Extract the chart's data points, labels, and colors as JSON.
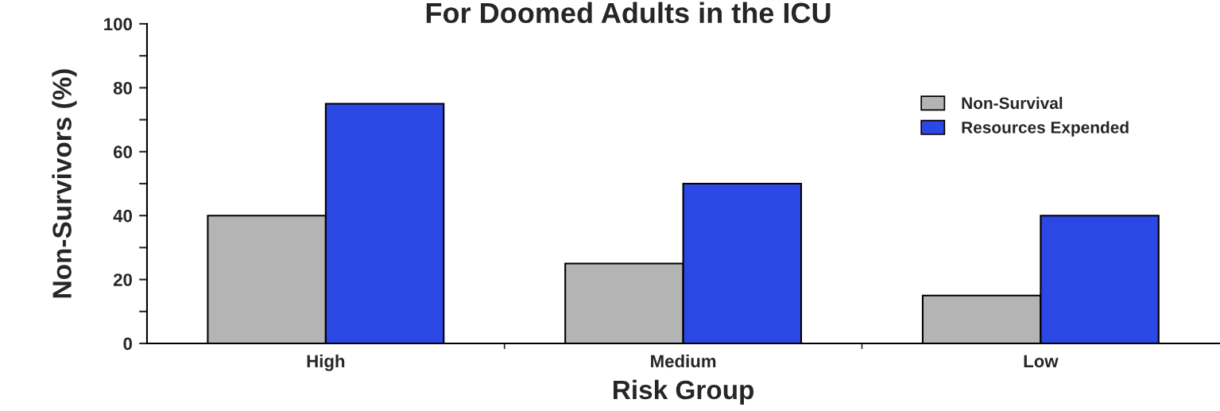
{
  "chart_data": {
    "type": "bar",
    "title": "For Doomed Adults in the ICU",
    "xlabel": "Risk Group",
    "ylabel": "Non-Survivors (%)",
    "categories": [
      "High",
      "Medium",
      "Low"
    ],
    "series": [
      {
        "name": "Non-Survival",
        "color": "#b4b4b4",
        "values": [
          40,
          25,
          15
        ]
      },
      {
        "name": "Resources Expended",
        "color": "#2b47e4",
        "values": [
          75,
          50,
          40
        ]
      }
    ],
    "ylim": [
      0,
      100
    ],
    "yticks": [
      0,
      {
        "value": 10,
        "label": null
      },
      20,
      {
        "value": 30,
        "label": null
      },
      40,
      {
        "value": 50,
        "label": null
      },
      60,
      {
        "value": 70,
        "label": null
      },
      80,
      {
        "value": 90,
        "label": null
      },
      100
    ],
    "legend": "top right"
  }
}
